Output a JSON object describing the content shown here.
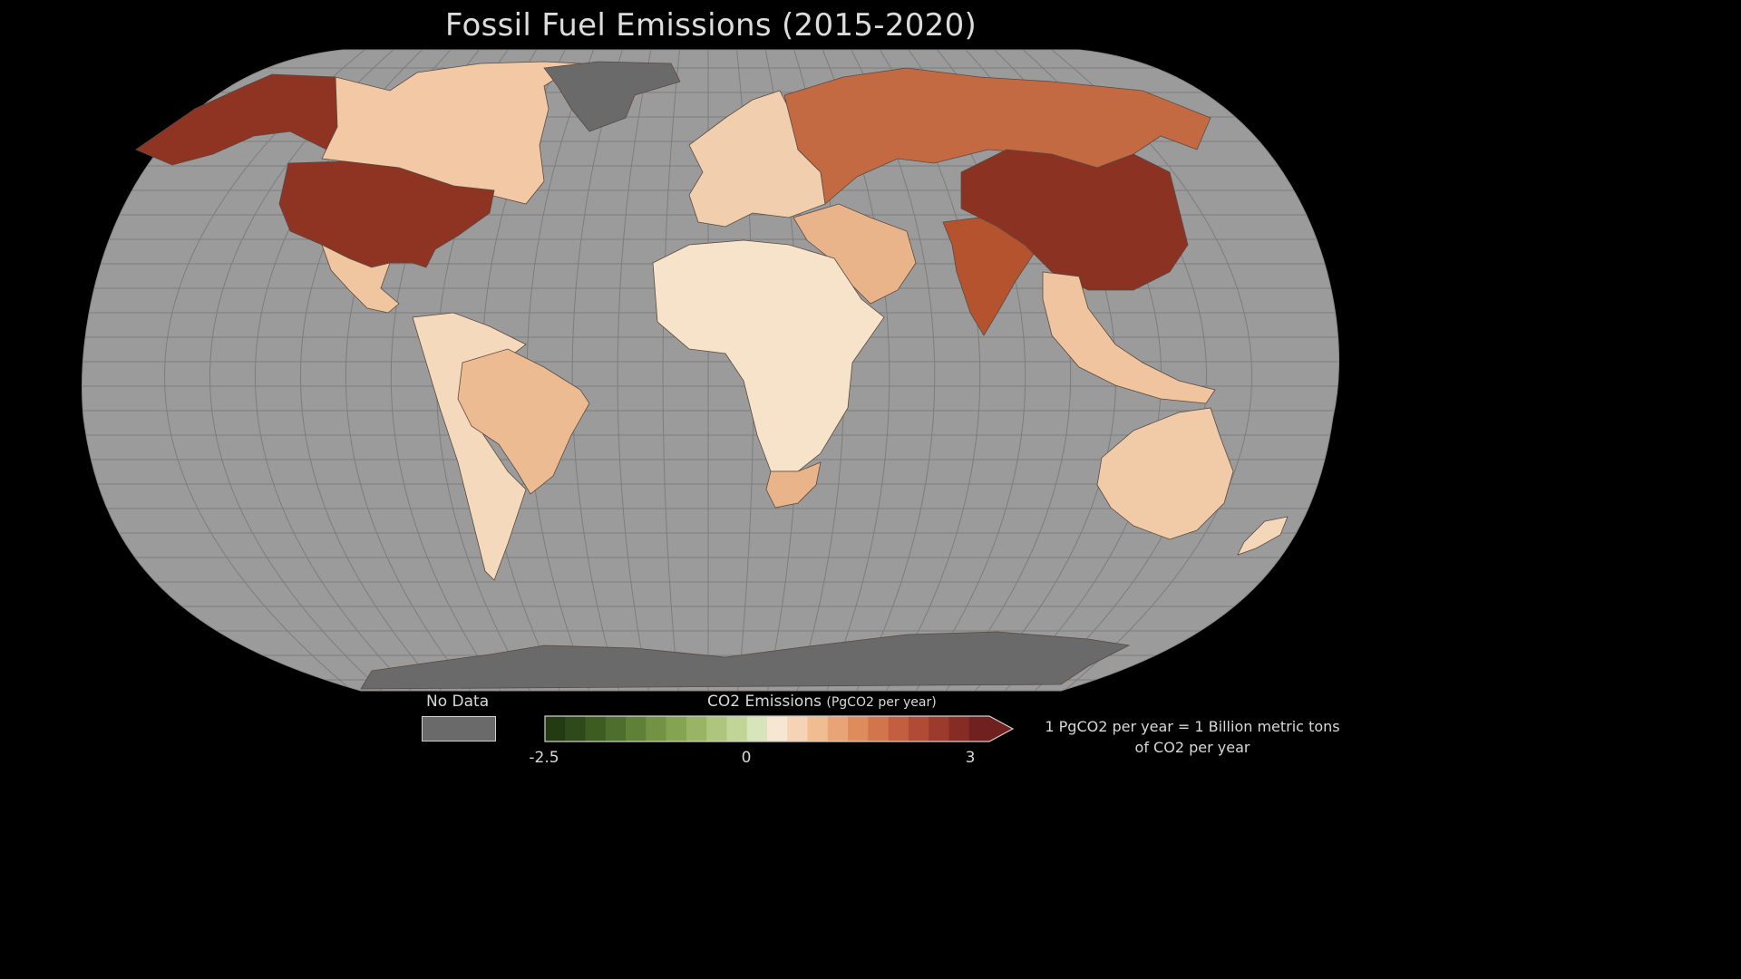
{
  "title": "Fossil Fuel Emissions (2015-2020)",
  "legend": {
    "no_data_label": "No Data",
    "no_data_color": "#6a6a6a",
    "colorbar_title": "CO2 Emissions",
    "colorbar_unit": "(PgCO2 per year)",
    "ticks": [
      "-2.5",
      "0",
      "3"
    ],
    "range": [
      -2.5,
      3
    ],
    "colors": [
      "#233a13",
      "#2f4a1a",
      "#3d5c22",
      "#4d6e2c",
      "#5f8137",
      "#719343",
      "#84a452",
      "#98b565",
      "#adc57c",
      "#c2d598",
      "#d8e5bb",
      "#f7e6d2",
      "#f5d3b4",
      "#f0bd93",
      "#e8a476",
      "#de8c5e",
      "#d2754c",
      "#c35f40",
      "#b14b36",
      "#9c3a2d",
      "#862c25",
      "#70201e"
    ],
    "note_line1": "1 PgCO2 per year = 1 Billion metric tons",
    "note_line2": "of CO2 per year"
  },
  "map": {
    "ocean_color": "#9b9b9b",
    "no_data_land_color": "#6a6a6a",
    "regions": [
      {
        "name": "United States",
        "color": "#8f3323"
      },
      {
        "name": "Alaska",
        "color": "#8f3323"
      },
      {
        "name": "Canada",
        "color": "#f2c9a4"
      },
      {
        "name": "Greenland",
        "color": "#6a6a6a"
      },
      {
        "name": "Mexico",
        "color": "#f0c6a0"
      },
      {
        "name": "Brazil",
        "color": "#ecbb92"
      },
      {
        "name": "South America (other)",
        "color": "#f4d9bd"
      },
      {
        "name": "Europe",
        "color": "#f1cfae"
      },
      {
        "name": "Russia",
        "color": "#c46a42"
      },
      {
        "name": "China",
        "color": "#8c3222"
      },
      {
        "name": "India",
        "color": "#b5532f"
      },
      {
        "name": "Middle East",
        "color": "#eab48a"
      },
      {
        "name": "Africa",
        "color": "#f7e3c9"
      },
      {
        "name": "South Africa",
        "color": "#eab48a"
      },
      {
        "name": "Southeast Asia",
        "color": "#efc49e"
      },
      {
        "name": "Australia",
        "color": "#f1cba7"
      },
      {
        "name": "New Zealand",
        "color": "#f4d6b9"
      },
      {
        "name": "Antarctica",
        "color": "#6a6a6a"
      }
    ]
  }
}
